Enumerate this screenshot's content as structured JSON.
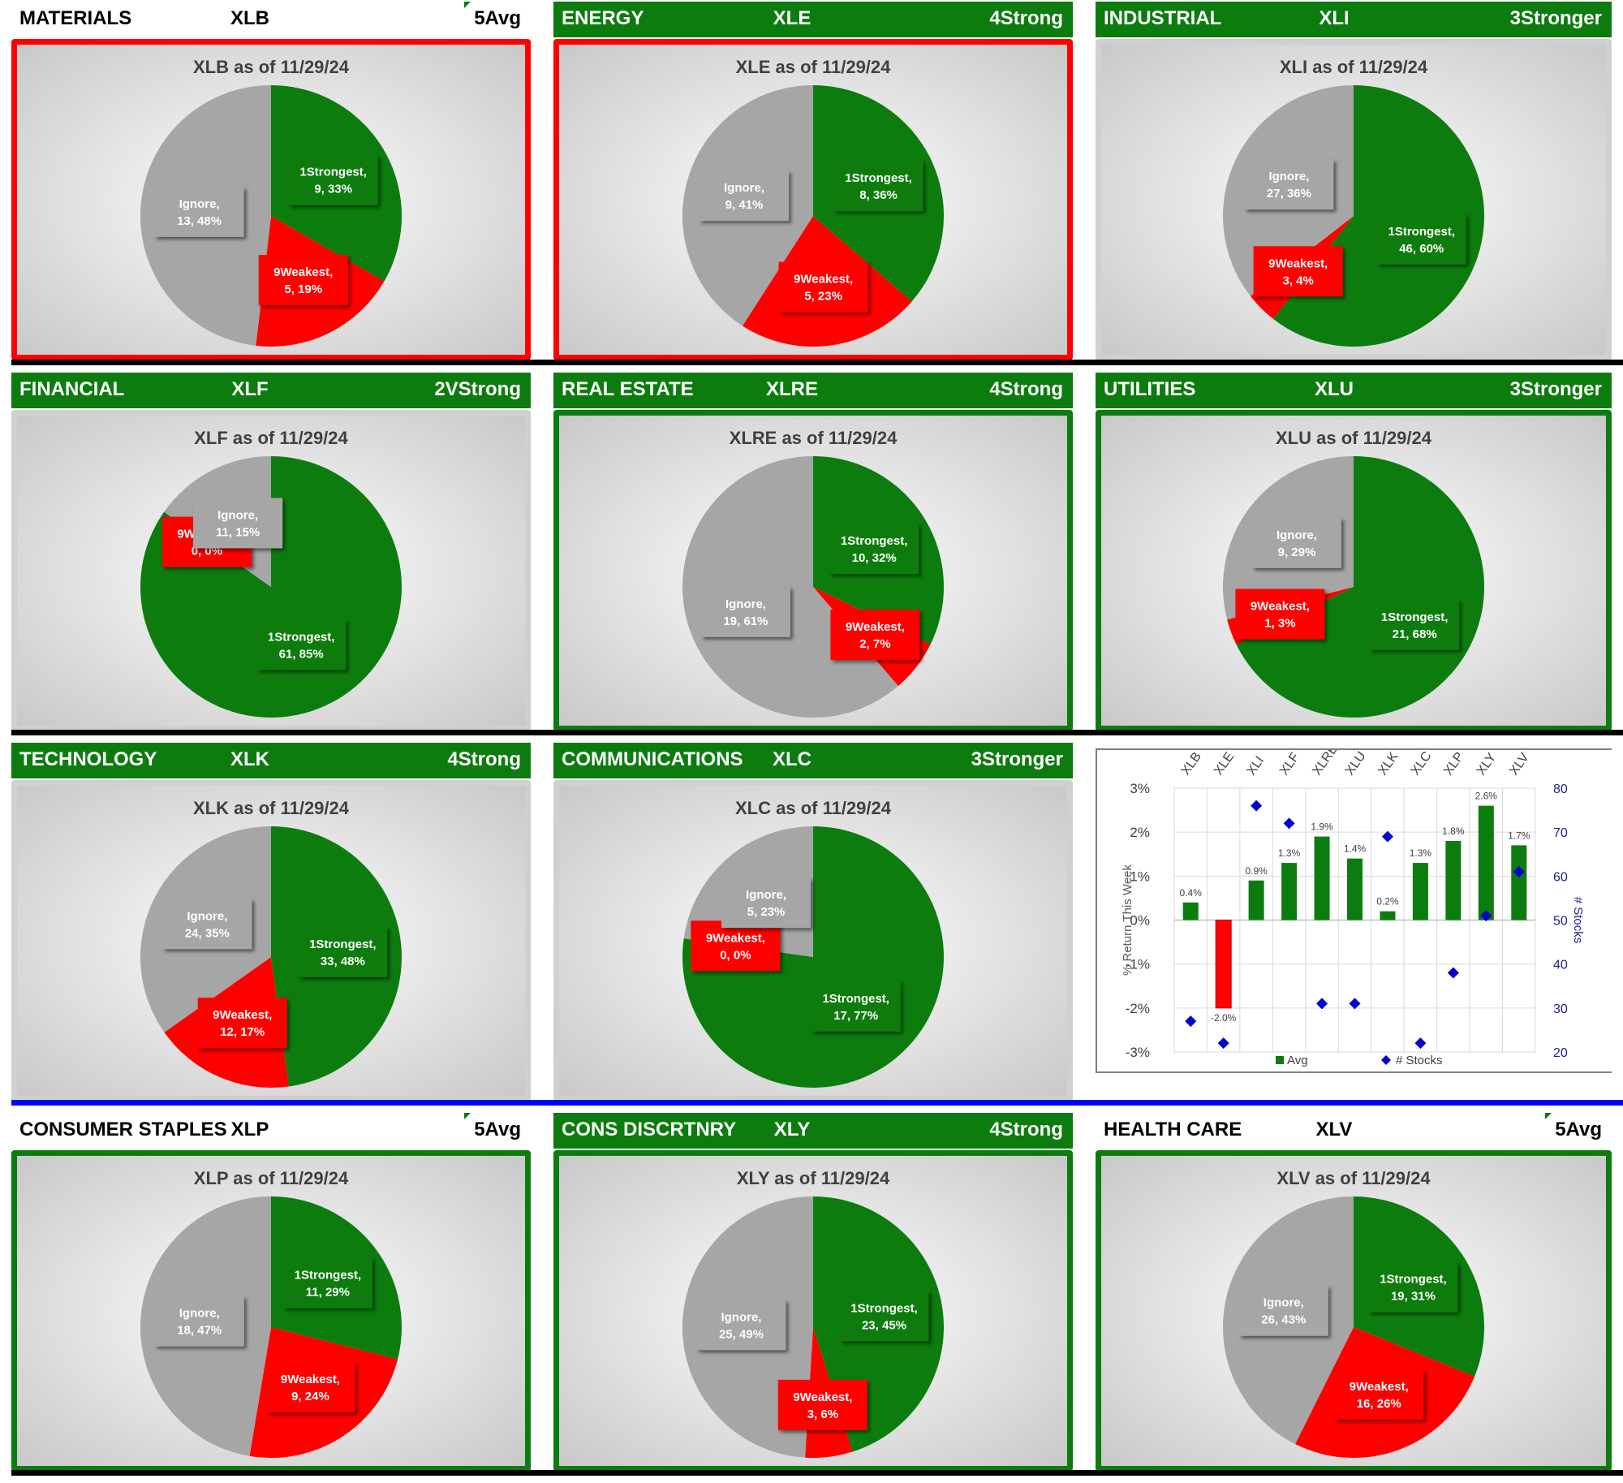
{
  "rows": [
    {
      "separator_color": "#000000",
      "cells": [
        {
          "sector": "MATERIALS",
          "ticker": "XLB",
          "rating": "5Avg",
          "header_style": "white",
          "border": "red",
          "title": "XLB as of 11/29/24",
          "slices": [
            {
              "label": "1Strongest, 9, 33%",
              "value": 9
            },
            {
              "label": "9Weakest, 5, 19%",
              "value": 5
            },
            {
              "label": "Ignore, 13, 48%",
              "value": 13
            }
          ]
        },
        {
          "sector": "ENERGY",
          "ticker": "XLE",
          "rating": "4Strong",
          "header_style": "green",
          "border": "red",
          "title": "XLE as of 11/29/24",
          "slices": [
            {
              "label": "1Strongest, 8, 36%",
              "value": 8
            },
            {
              "label": "9Weakest, 5, 23%",
              "value": 5
            },
            {
              "label": "Ignore, 9, 41%",
              "value": 9
            }
          ]
        },
        {
          "sector": "INDUSTRIAL",
          "ticker": "XLI",
          "rating": "3Stronger",
          "header_style": "green",
          "border": "none",
          "title": "XLI as of 11/29/24",
          "slices": [
            {
              "label": "1Strongest, 46, 60%",
              "value": 46
            },
            {
              "label": "9Weakest, 3, 4%",
              "value": 3
            },
            {
              "label": "Ignore, 27, 36%",
              "value": 27
            }
          ]
        }
      ]
    },
    {
      "separator_color": "#000000",
      "cells": [
        {
          "sector": "FINANCIAL",
          "ticker": "XLF",
          "rating": "2VStrong",
          "header_style": "green",
          "border": "none",
          "title": "XLF as of 11/29/24",
          "slices": [
            {
              "label": "1Strongest, 61, 85%",
              "value": 61
            },
            {
              "label": "9Weakest, 0, 0%",
              "value": 0
            },
            {
              "label": "Ignore, 11, 15%",
              "value": 11
            }
          ]
        },
        {
          "sector": "REAL ESTATE",
          "ticker": "XLRE",
          "rating": "4Strong",
          "header_style": "green",
          "border": "green",
          "title": "XLRE as of 11/29/24",
          "slices": [
            {
              "label": "1Strongest, 10, 32%",
              "value": 10
            },
            {
              "label": "9Weakest, 2, 7%",
              "value": 2
            },
            {
              "label": "Ignore, 19, 61%",
              "value": 19
            }
          ]
        },
        {
          "sector": "UTILITIES",
          "ticker": "XLU",
          "rating": "3Stronger",
          "header_style": "green",
          "border": "green",
          "title": "XLU as of 11/29/24",
          "slices": [
            {
              "label": "1Strongest, 21, 68%",
              "value": 21
            },
            {
              "label": "9Weakest, 1, 3%",
              "value": 1
            },
            {
              "label": "Ignore, 9, 29%",
              "value": 9
            }
          ]
        }
      ]
    },
    {
      "separator_color": "#0000ff",
      "cells": [
        {
          "sector": "TECHNOLOGY",
          "ticker": "XLK",
          "rating": "4Strong",
          "header_style": "green",
          "border": "none",
          "title": "XLK as of 11/29/24",
          "slices": [
            {
              "label": "1Strongest, 33, 48%",
              "value": 33
            },
            {
              "label": "9Weakest, 12, 17%",
              "value": 12
            },
            {
              "label": "Ignore, 24, 35%",
              "value": 24
            }
          ]
        },
        {
          "sector": "COMMUNICATIONS",
          "ticker": "XLC",
          "rating": "3Stronger",
          "header_style": "green",
          "border": "none",
          "title": "XLC as of 11/29/24",
          "slices": [
            {
              "label": "1Strongest, 17, 77%",
              "value": 17
            },
            {
              "label": "9Weakest, 0, 0%",
              "value": 0
            },
            {
              "label": "Ignore, 5, 23%",
              "value": 5
            }
          ]
        },
        {
          "combo": true
        }
      ]
    },
    {
      "separator_color": "#000000",
      "cells": [
        {
          "sector": "CONSUMER STAPLES",
          "ticker": "XLP",
          "rating": "5Avg",
          "header_style": "white",
          "border": "green",
          "title": "XLP as of 11/29/24",
          "slices": [
            {
              "label": "1Strongest, 11, 29%",
              "value": 11
            },
            {
              "label": "9Weakest, 9, 24%",
              "value": 9
            },
            {
              "label": "Ignore, 18, 47%",
              "value": 18
            }
          ]
        },
        {
          "sector": "CONS DISCRTNRY",
          "ticker": "XLY",
          "rating": "4Strong",
          "header_style": "green",
          "border": "green",
          "title": "XLY as of 11/29/24",
          "slices": [
            {
              "label": "1Strongest, 23, 45%",
              "value": 23
            },
            {
              "label": "9Weakest, 3, 6%",
              "value": 3
            },
            {
              "label": "Ignore, 25, 49%",
              "value": 25
            }
          ]
        },
        {
          "sector": "HEALTH CARE",
          "ticker": "XLV",
          "rating": "5Avg",
          "header_style": "white",
          "border": "green",
          "title": "XLV as of 11/29/24",
          "slices": [
            {
              "label": "1Strongest, 19, 31%",
              "value": 19
            },
            {
              "label": "9Weakest, 16, 26%",
              "value": 16
            },
            {
              "label": "Ignore, 26, 43%",
              "value": 26
            }
          ]
        }
      ]
    }
  ],
  "colors": {
    "strongest": "#0c7c0f",
    "weakest": "#ff0000",
    "ignore": "#a6a6a6",
    "accent_green": "#0c7c0f"
  },
  "chart_data": {
    "type": "bar",
    "categories": [
      "XLB",
      "XLE",
      "XLI",
      "XLF",
      "XLRE",
      "XLU",
      "XLK",
      "XLC",
      "XLP",
      "XLY",
      "XLV"
    ],
    "series": [
      {
        "name": "Avg",
        "kind": "bar",
        "axis": "left",
        "values": [
          0.4,
          -2.0,
          0.9,
          1.3,
          1.9,
          1.4,
          0.2,
          1.3,
          1.8,
          2.6,
          1.7
        ],
        "labels": [
          "0.4%",
          "-2.0%",
          "0.9%",
          "1.3%",
          "1.9%",
          "1.4%",
          "0.2%",
          "1.3%",
          "1.8%",
          "2.6%",
          "1.7%"
        ]
      },
      {
        "name": "# Stocks",
        "kind": "scatter",
        "axis": "right",
        "values": [
          27,
          22,
          76,
          72,
          31,
          31,
          69,
          22,
          38,
          51,
          61
        ]
      }
    ],
    "ylabel": "% Return This Week",
    "y2label": "# Stocks",
    "ylim": [
      -3,
      3
    ],
    "y2lim": [
      20,
      80
    ],
    "yticks": [
      "3%",
      "2%",
      "1%",
      "0%",
      "-1%",
      "-2%",
      "-3%"
    ],
    "y2ticks": [
      "80",
      "70",
      "60",
      "50",
      "40",
      "30",
      "20"
    ],
    "legend": [
      "Avg",
      "# Stocks"
    ]
  }
}
